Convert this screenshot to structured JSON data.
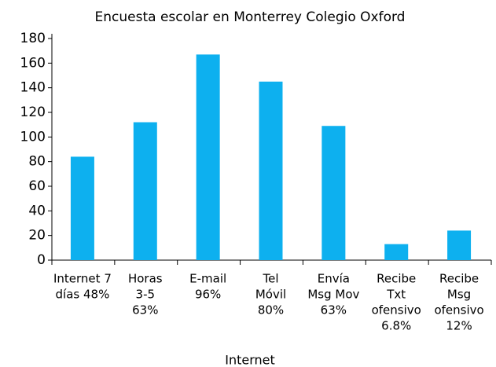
{
  "chart_data": {
    "type": "bar",
    "title": "Encuesta escolar en Monterrey Colegio Oxford",
    "x_label": "Internet",
    "categories": [
      [
        "Internet 7",
        "días 48%"
      ],
      [
        "Horas",
        "3-5",
        "63%"
      ],
      [
        "E-mail",
        "96%"
      ],
      [
        "Tel",
        "Móvil",
        "80%"
      ],
      [
        "Envía",
        "Msg Mov",
        "63%"
      ],
      [
        "Recibe",
        "Txt",
        "ofensivo",
        "6.8%"
      ],
      [
        "Recibe",
        "Msg",
        "ofensivo",
        "12%"
      ]
    ],
    "values": [
      84,
      112,
      167,
      145,
      109,
      13,
      24
    ],
    "color": "#0db0ef",
    "ylim": [
      0,
      180
    ],
    "yticks": [
      0,
      20,
      40,
      60,
      80,
      100,
      120,
      140,
      160,
      180
    ],
    "grid": false
  }
}
